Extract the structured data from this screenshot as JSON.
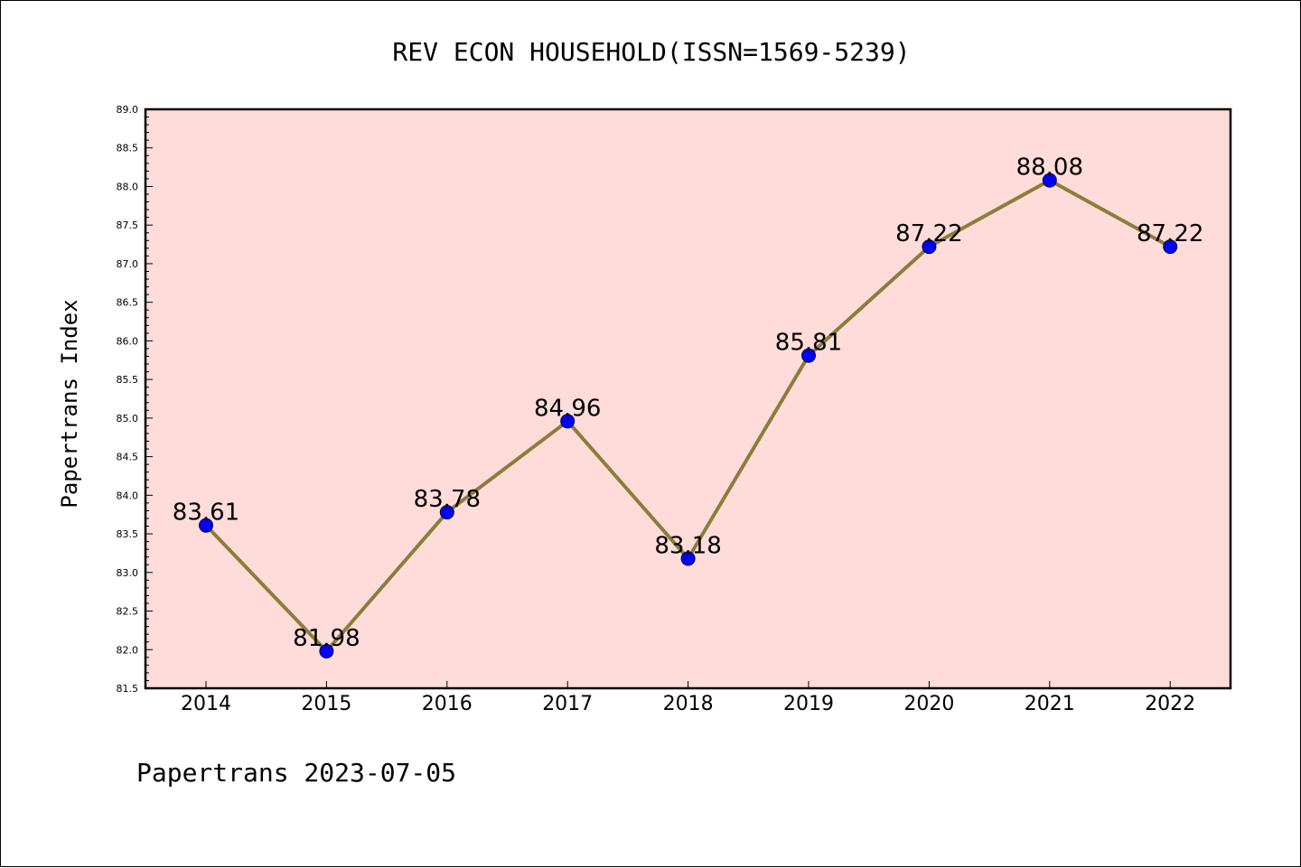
{
  "chart_data": {
    "type": "line",
    "title": "REV ECON HOUSEHOLD(ISSN=1569-5239)",
    "ylabel": "Papertrans Index",
    "xlabel": "",
    "categories": [
      "2014",
      "2015",
      "2016",
      "2017",
      "2018",
      "2019",
      "2020",
      "2021",
      "2022"
    ],
    "values": [
      83.61,
      81.98,
      83.78,
      84.96,
      83.18,
      85.81,
      87.22,
      88.08,
      87.22
    ],
    "data_labels": [
      "83.61",
      "81.98",
      "83.78",
      "84.96",
      "83.18",
      "85.81",
      "87.22",
      "88.08",
      "87.22"
    ],
    "ylim": [
      81.5,
      89.0
    ],
    "yticks": [
      "81.5",
      "82.0",
      "82.5",
      "83.0",
      "83.5",
      "84.0",
      "84.5",
      "85.0",
      "85.5",
      "86.0",
      "86.5",
      "87.0",
      "87.5",
      "88.0",
      "88.5",
      "89.0"
    ],
    "grid": false,
    "colors": {
      "plot_background": "#ffdcd9",
      "line": "#8b7d3a",
      "marker": "#0000ff"
    }
  },
  "footer": "Papertrans 2023-07-05"
}
